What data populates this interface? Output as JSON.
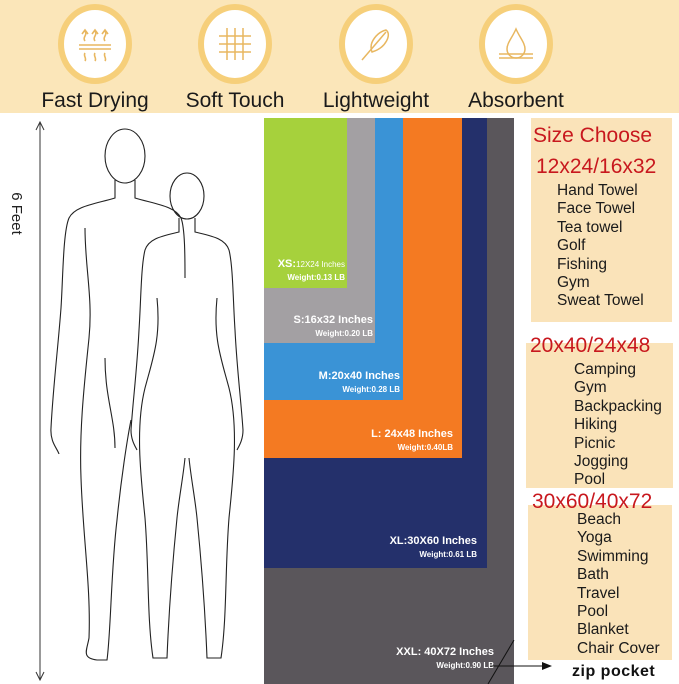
{
  "features": [
    {
      "label": "Fast Drying",
      "icon": "heat-waves-icon"
    },
    {
      "label": "Soft Touch",
      "icon": "fabric-grid-icon"
    },
    {
      "label": "Lightweight",
      "icon": "feather-icon"
    },
    {
      "label": "Absorbent",
      "icon": "water-drop-icon"
    }
  ],
  "height_label": "6 Feet",
  "towels": [
    {
      "size": "XXL: 40X72 Inches",
      "weight": "Weight:0.90 LB",
      "color": "#5a565b"
    },
    {
      "size": "XL:30X60 Inches",
      "weight": "Weight:0.61 LB",
      "color": "#24306b"
    },
    {
      "size": "L: 24x48 Inches",
      "weight": "Weight:0.40LB",
      "color": "#f47a22"
    },
    {
      "size": "M:20x40 Inches",
      "weight": "Weight:0.28 LB",
      "color": "#3a93d6"
    },
    {
      "size": "S:16x32 Inches",
      "weight": "Weight:0.20 LB",
      "color": "#a3a0a3"
    },
    {
      "size_prefix": "XS:",
      "size": "12X24 Inches",
      "weight": "Weight:0.13 LB",
      "color": "#a6d13c"
    }
  ],
  "zip_pocket": "zip pocket",
  "size_choose": {
    "title": "Size Choose",
    "groups": [
      {
        "heading": "12x24/16x32",
        "uses": [
          "Hand Towel",
          "Face Towel",
          "Tea towel",
          "Golf",
          "Fishing",
          "Gym",
          "Sweat Towel"
        ]
      },
      {
        "heading": "20x40/24x48",
        "uses": [
          "Camping",
          "Gym",
          "Backpacking",
          "Hiking",
          "Picnic",
          "Jogging",
          "Pool"
        ]
      },
      {
        "heading": "30x60/40x72",
        "uses": [
          "Beach",
          "Yoga",
          "Swimming",
          "Bath",
          "Travel",
          "Pool",
          "Blanket",
          "Chair Cover"
        ]
      }
    ]
  }
}
